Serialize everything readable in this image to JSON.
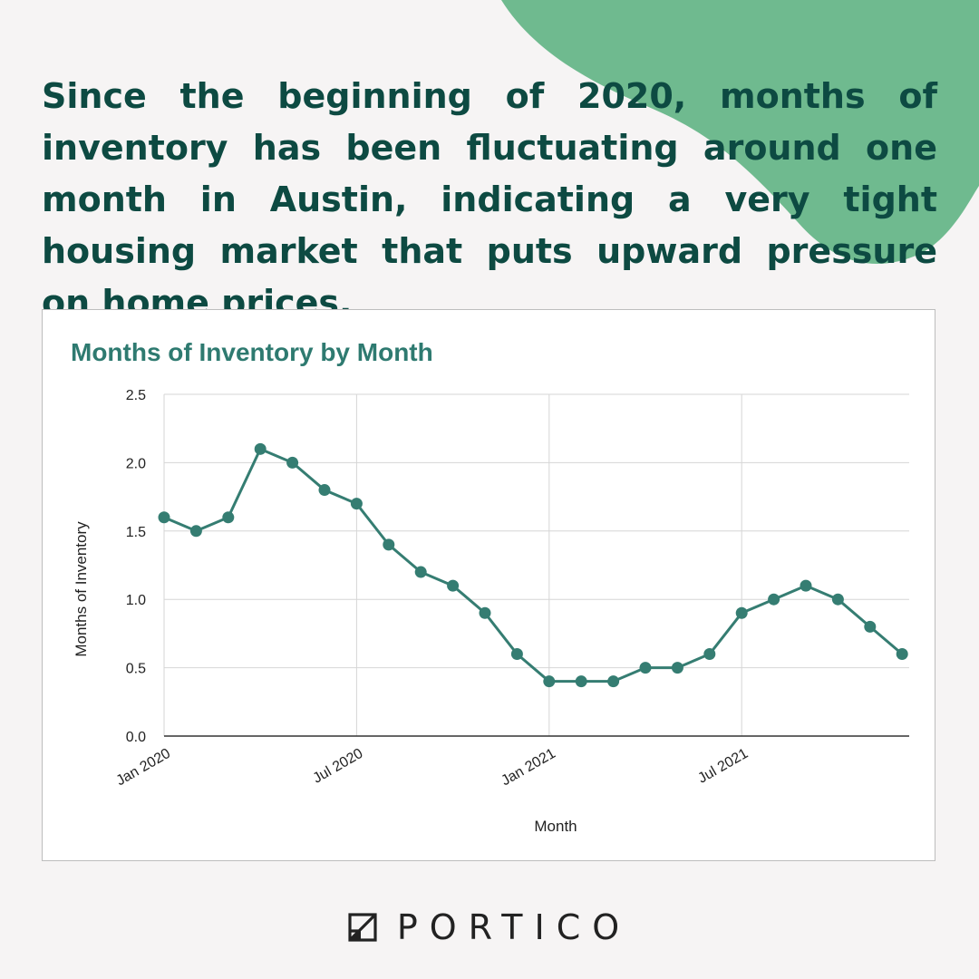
{
  "headline": "Since the beginning of 2020, months of inventory has been fluctuating around one month in Austin, indicating a very tight housing market that puts upward pressure on home prices.",
  "colors": {
    "background": "#f6f4f4",
    "accent_blob": "#6fba8f",
    "headline": "#0d4a42",
    "series": "#357d72",
    "title": "#2e7a70"
  },
  "brand": {
    "name": "PORTICO",
    "logo_icon": "portico-logo-icon"
  },
  "chart_data": {
    "type": "line",
    "title": "Months of Inventory by Month",
    "xlabel": "Month",
    "ylabel": "Months of Inventory",
    "ylim": [
      0,
      2.5
    ],
    "yticks": [
      "0.0",
      "0.5",
      "1.0",
      "1.5",
      "2.0",
      "2.5"
    ],
    "xtick_labels": [
      {
        "label": "Jan 2020",
        "index": 0
      },
      {
        "label": "Jul 2020",
        "index": 6
      },
      {
        "label": "Jan 2021",
        "index": 12
      },
      {
        "label": "Jul 2021",
        "index": 18
      }
    ],
    "x": [
      "Jan 2020",
      "Feb 2020",
      "Mar 2020",
      "Apr 2020",
      "May 2020",
      "Jun 2020",
      "Jul 2020",
      "Aug 2020",
      "Sep 2020",
      "Oct 2020",
      "Nov 2020",
      "Dec 2020",
      "Jan 2021",
      "Feb 2021",
      "Mar 2021",
      "Apr 2021",
      "May 2021",
      "Jun 2021",
      "Jul 2021",
      "Aug 2021",
      "Sep 2021",
      "Oct 2021",
      "Nov 2021",
      "Dec 2021"
    ],
    "series": [
      {
        "name": "Months of Inventory",
        "values": [
          1.6,
          1.5,
          1.6,
          2.1,
          2.0,
          1.8,
          1.7,
          1.4,
          1.2,
          1.1,
          0.9,
          0.6,
          0.4,
          0.4,
          0.4,
          0.5,
          0.5,
          0.6,
          0.9,
          1.0,
          1.1,
          1.0,
          0.8,
          0.6
        ]
      }
    ],
    "grid": true
  }
}
